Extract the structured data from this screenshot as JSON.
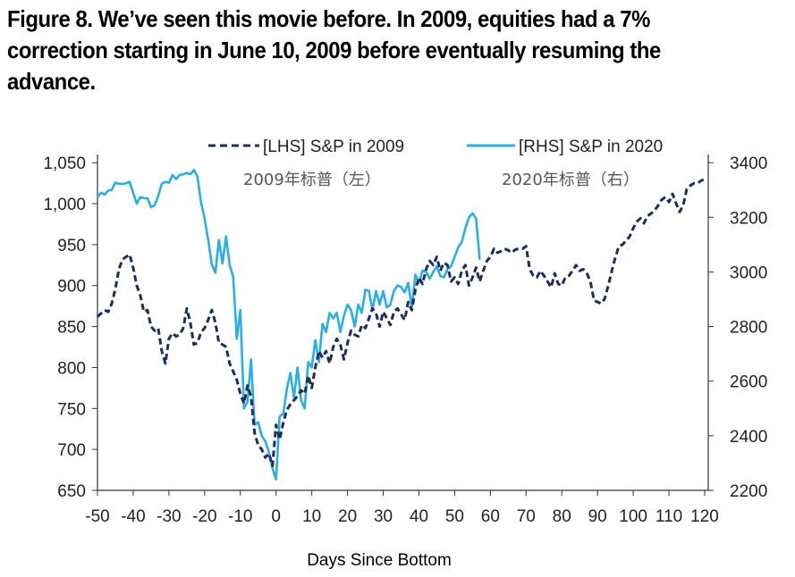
{
  "figure": {
    "title": "Figure 8. We’ve seen this movie before. In 2009, equities had a 7% correction starting in June 10, 2009 before eventually resuming the advance."
  },
  "chart_data": {
    "type": "line",
    "xlabel": "Days Since Bottom",
    "xlim": [
      -50,
      121
    ],
    "x_ticks": [
      -50,
      -40,
      -30,
      -20,
      -10,
      0,
      10,
      20,
      30,
      40,
      50,
      60,
      70,
      80,
      90,
      100,
      110,
      120
    ],
    "y_left": {
      "lim": [
        650,
        1060
      ],
      "ticks": [
        650,
        700,
        750,
        800,
        850,
        900,
        950,
        1000,
        1050
      ],
      "tick_labels": [
        "650",
        "700",
        "750",
        "800",
        "850",
        "900",
        "950",
        "1,000",
        "1,050"
      ]
    },
    "y_right": {
      "lim": [
        2200,
        3430
      ],
      "ticks": [
        2200,
        2400,
        2600,
        2800,
        3000,
        3200,
        3400
      ],
      "tick_labels": [
        "2200",
        "2400",
        "2600",
        "2800",
        "3000",
        "3200",
        "3400"
      ]
    },
    "grid": false,
    "legend_position": "top",
    "series": [
      {
        "name": "[LHS] S&P in 2009",
        "subtitle": "2009年标普（左）",
        "axis": "left",
        "color": "#1f2d5c",
        "style": "dashed",
        "x": [
          -50,
          -49,
          -48,
          -47,
          -46,
          -45,
          -44,
          -43,
          -42,
          -41,
          -40,
          -39,
          -38,
          -37,
          -36,
          -35,
          -34,
          -33,
          -32,
          -31,
          -30,
          -29,
          -28,
          -27,
          -26,
          -25,
          -24,
          -23,
          -22,
          -21,
          -20,
          -19,
          -18,
          -17,
          -16,
          -15,
          -14,
          -13,
          -12,
          -11,
          -10,
          -9,
          -8,
          -7,
          -6,
          -5,
          -4,
          -3,
          -2,
          -1,
          0,
          1,
          2,
          3,
          4,
          5,
          6,
          7,
          8,
          9,
          10,
          11,
          12,
          13,
          14,
          15,
          16,
          17,
          18,
          19,
          20,
          21,
          22,
          23,
          24,
          25,
          26,
          27,
          28,
          29,
          30,
          31,
          32,
          33,
          34,
          35,
          36,
          37,
          38,
          39,
          40,
          41,
          42,
          43,
          44,
          45,
          46,
          47,
          48,
          49,
          50,
          51,
          52,
          53,
          54,
          55,
          56,
          57,
          58,
          59,
          60,
          61,
          62,
          63,
          64,
          65,
          66,
          67,
          68,
          69,
          70,
          71,
          72,
          73,
          74,
          75,
          76,
          77,
          78,
          79,
          80,
          81,
          82,
          83,
          84,
          85,
          86,
          87,
          88,
          89,
          90,
          91,
          92,
          93,
          94,
          95,
          96,
          97,
          98,
          99,
          100,
          101,
          102,
          103,
          104,
          105,
          106,
          107,
          108,
          109,
          110,
          111,
          112,
          113,
          114,
          115,
          116,
          117,
          118,
          119,
          120
        ],
        "values": [
          862,
          866,
          870,
          868,
          878,
          896,
          920,
          932,
          935,
          938,
          922,
          900,
          888,
          868,
          870,
          850,
          845,
          848,
          820,
          805,
          835,
          842,
          838,
          840,
          848,
          872,
          855,
          828,
          830,
          843,
          848,
          858,
          870,
          855,
          830,
          828,
          825,
          805,
          795,
          785,
          768,
          756,
          778,
          765,
          720,
          705,
          700,
          690,
          695,
          680,
          730,
          712,
          732,
          748,
          755,
          760,
          765,
          772,
          768,
          790,
          775,
          800,
          820,
          812,
          820,
          805,
          825,
          835,
          828,
          810,
          830,
          845,
          840,
          838,
          852,
          848,
          860,
          872,
          866,
          850,
          868,
          860,
          852,
          868,
          872,
          865,
          858,
          880,
          870,
          895,
          910,
          902,
          920,
          930,
          925,
          935,
          918,
          928,
          925,
          905,
          910,
          902,
          918,
          925,
          900,
          910,
          922,
          905,
          918,
          930,
          935,
          945,
          940,
          942,
          945,
          943,
          940,
          944,
          945,
          945,
          948,
          920,
          912,
          910,
          918,
          912,
          905,
          898,
          915,
          902,
          900,
          910,
          912,
          918,
          925,
          918,
          920,
          915,
          905,
          882,
          880,
          878,
          884,
          900,
          918,
          935,
          948,
          950,
          955,
          960,
          970,
          978,
          982,
          976,
          985,
          988,
          992,
          998,
          1005,
          1008,
          1002,
          1012,
          1000,
          990,
          998,
          1018,
          1022,
          1025,
          1025,
          1028,
          1030
        ]
      },
      {
        "name": "[RHS] S&P in 2020",
        "subtitle": "2020年标普（右）",
        "axis": "right",
        "color": "#29aee6",
        "style": "solid",
        "x": [
          -50,
          -49,
          -48,
          -47,
          -46,
          -45,
          -44,
          -43,
          -42,
          -41,
          -40,
          -39,
          -38,
          -37,
          -36,
          -35,
          -34,
          -33,
          -32,
          -31,
          -30,
          -29,
          -28,
          -27,
          -26,
          -25,
          -24,
          -23,
          -22,
          -21,
          -20,
          -19,
          -18,
          -17,
          -16,
          -15,
          -14,
          -13,
          -12,
          -11,
          -10,
          -9,
          -8,
          -7,
          -6,
          -5,
          -4,
          -3,
          -2,
          -1,
          0,
          1,
          2,
          3,
          4,
          5,
          6,
          7,
          8,
          9,
          10,
          11,
          12,
          13,
          14,
          15,
          16,
          17,
          18,
          19,
          20,
          21,
          22,
          23,
          24,
          25,
          26,
          27,
          28,
          29,
          30,
          31,
          32,
          33,
          34,
          35,
          36,
          37,
          38,
          39,
          40,
          41,
          42,
          43,
          44,
          45,
          46,
          47,
          48,
          49,
          50,
          51,
          52,
          53,
          54,
          55,
          56,
          57
        ],
        "values": [
          3274,
          3290,
          3283,
          3298,
          3300,
          3327,
          3323,
          3322,
          3325,
          3330,
          3290,
          3250,
          3274,
          3270,
          3270,
          3237,
          3244,
          3278,
          3323,
          3330,
          3326,
          3355,
          3340,
          3355,
          3357,
          3363,
          3358,
          3373,
          3350,
          3255,
          3196,
          3117,
          3028,
          2997,
          3117,
          3031,
          3130,
          3025,
          2982,
          2755,
          2860,
          2500,
          2525,
          2680,
          2440,
          2450,
          2400,
          2380,
          2340,
          2280,
          2240,
          2470,
          2480,
          2570,
          2630,
          2540,
          2650,
          2530,
          2500,
          2670,
          2650,
          2750,
          2670,
          2810,
          2780,
          2850,
          2830,
          2850,
          2780,
          2840,
          2880,
          2860,
          2800,
          2880,
          2850,
          2935,
          2930,
          2860,
          2930,
          2880,
          2930,
          2870,
          2880,
          2930,
          2950,
          2945,
          2925,
          2960,
          2870,
          2990,
          2960,
          3005,
          3000,
          2975,
          3000,
          3020,
          2985,
          2980,
          3010,
          3020,
          3055,
          3090,
          3110,
          3160,
          3200,
          3215,
          3195,
          3045
        ]
      }
    ]
  }
}
